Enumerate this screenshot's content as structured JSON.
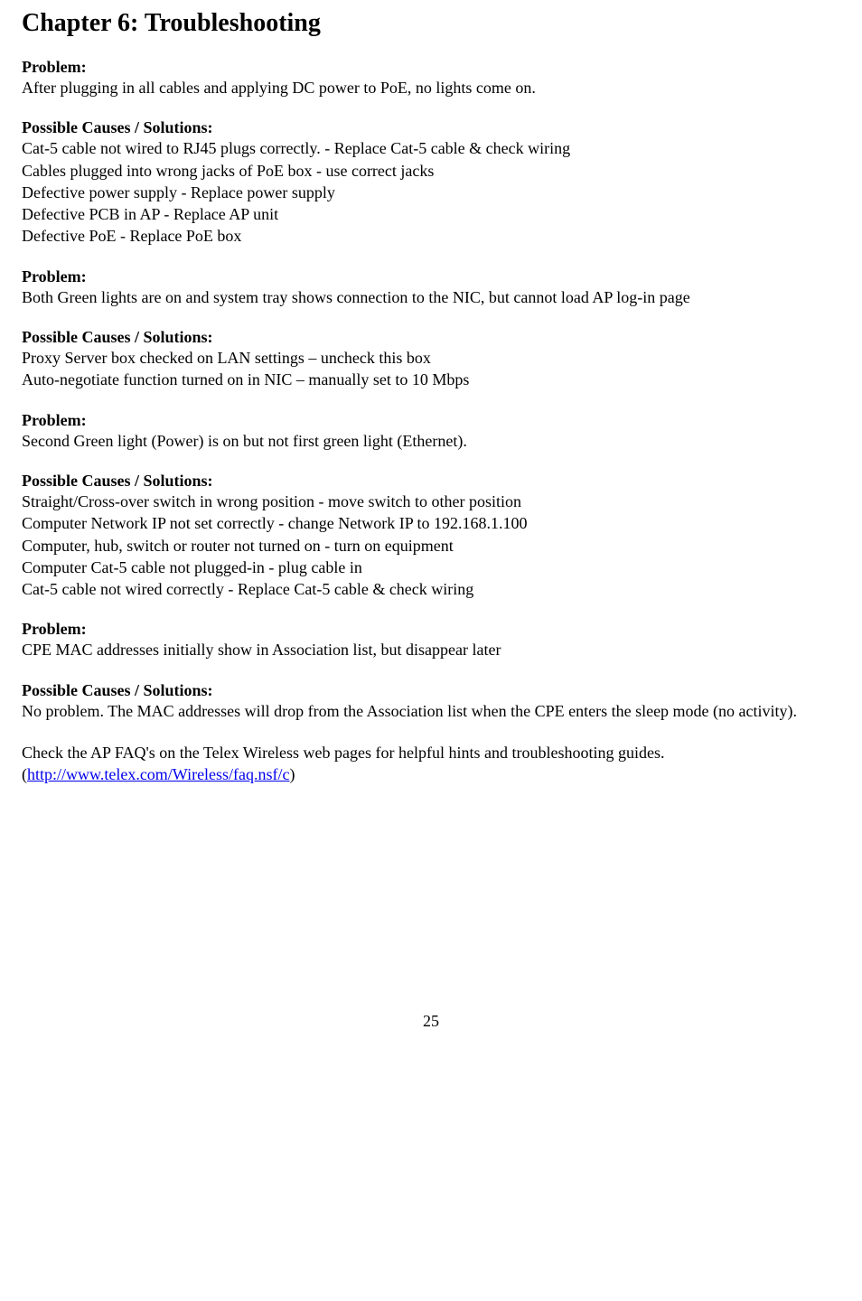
{
  "chapter_title": "Chapter 6: Troubleshooting",
  "sections": [
    {
      "problem_label": "Problem:",
      "problem_text": "After plugging in all cables and applying DC power to PoE, no lights come on.",
      "solutions_label": "Possible Causes / Solutions:",
      "solutions": [
        "Cat-5 cable not wired to RJ45 plugs correctly.     -     Replace Cat-5 cable & check wiring",
        "Cables plugged into wrong jacks of PoE box     -     use correct jacks",
        "Defective power supply     -     Replace power supply",
        "Defective PCB in AP     -     Replace AP unit",
        "Defective PoE     -     Replace PoE box"
      ]
    },
    {
      "problem_label": "Problem:",
      "problem_text": "Both Green lights are on and system tray shows connection to the NIC, but cannot load AP log-in page",
      "solutions_label": "Possible Causes / Solutions:",
      "solutions": [
        "Proxy Server box checked on LAN settings – uncheck this box",
        "Auto-negotiate function turned on in NIC – manually set to 10 Mbps"
      ]
    },
    {
      "problem_label": "Problem:",
      "problem_text": "Second Green light (Power) is on but not first green light (Ethernet).",
      "solutions_label": "Possible Causes / Solutions:",
      "solutions": [
        "Straight/Cross-over switch in wrong position     -     move switch to other position",
        "Computer Network IP not set correctly     -     change Network IP to 192.168.1.100",
        "Computer, hub, switch or router not turned on     -     turn on equipment",
        "Computer Cat-5 cable not plugged-in     -     plug cable in",
        "Cat-5 cable not wired correctly     -     Replace Cat-5 cable & check wiring"
      ]
    },
    {
      "problem_label": "Problem:",
      "problem_text": "CPE MAC addresses initially show in Association list, but disappear later",
      "solutions_label": "Possible Causes / Solutions:",
      "solutions": [
        "No problem.  The MAC addresses will drop from the Association list when the CPE enters the sleep mode (no activity)."
      ]
    }
  ],
  "footer_text_before": "Check the AP FAQ's on the Telex Wireless web pages for helpful hints and troubleshooting guides.  (",
  "footer_link_text": "http://www.telex.com/Wireless/faq.nsf/c",
  "footer_link_href": "http://www.telex.com/Wireless/faq.nsf/c",
  "footer_text_after": ")",
  "page_number": "25"
}
